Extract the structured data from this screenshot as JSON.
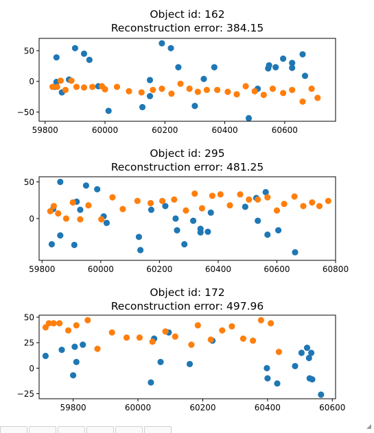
{
  "colors": {
    "series_a": "#1f77b4",
    "series_b": "#ff7f0e",
    "axis": "#000000"
  },
  "chart_data": [
    {
      "type": "scatter",
      "title": [
        "Object id: 162",
        "Reconstruction error: 384.15"
      ],
      "xlabel": "",
      "ylabel": "",
      "xlim": [
        59780,
        60770
      ],
      "ylim": [
        -65,
        70
      ],
      "xticks": [
        59800,
        60000,
        60200,
        60400,
        60600
      ],
      "yticks": [
        -50,
        0,
        50
      ],
      "grid": false,
      "series": [
        {
          "color": "#1f77b4",
          "points": [
            [
              59838,
              39
            ],
            [
              59838,
              -1
            ],
            [
              59833,
              -9
            ],
            [
              59856,
              -18
            ],
            [
              59880,
              3
            ],
            [
              59900,
              54
            ],
            [
              59930,
              45
            ],
            [
              59948,
              35
            ],
            [
              59978,
              -8
            ],
            [
              60012,
              -48
            ],
            [
              60125,
              -42
            ],
            [
              60150,
              2
            ],
            [
              60150,
              -24
            ],
            [
              60190,
              62
            ],
            [
              60220,
              54
            ],
            [
              60245,
              23
            ],
            [
              60300,
              -40
            ],
            [
              60330,
              4
            ],
            [
              60365,
              23
            ],
            [
              60480,
              -60
            ],
            [
              60510,
              -12
            ],
            [
              60545,
              21
            ],
            [
              60548,
              26
            ],
            [
              60570,
              23
            ],
            [
              60595,
              37
            ],
            [
              60625,
              22
            ],
            [
              60625,
              30
            ],
            [
              60660,
              44
            ],
            [
              60668,
              9
            ]
          ]
        },
        {
          "color": "#ff7f0e",
          "points": [
            [
              59825,
              -9
            ],
            [
              59840,
              -9
            ],
            [
              59852,
              1
            ],
            [
              59868,
              -14
            ],
            [
              59888,
              1
            ],
            [
              59905,
              -9
            ],
            [
              59930,
              -10
            ],
            [
              59958,
              -9
            ],
            [
              59990,
              -8
            ],
            [
              60000,
              -13
            ],
            [
              60040,
              -9
            ],
            [
              60080,
              -16
            ],
            [
              60122,
              -18
            ],
            [
              60160,
              -14
            ],
            [
              60190,
              -12
            ],
            [
              60222,
              -20
            ],
            [
              60252,
              -4
            ],
            [
              60282,
              -12
            ],
            [
              60310,
              -17
            ],
            [
              60340,
              -14
            ],
            [
              60375,
              -14
            ],
            [
              60410,
              -17
            ],
            [
              60440,
              -21
            ],
            [
              60470,
              -8
            ],
            [
              60500,
              -16
            ],
            [
              60530,
              -22
            ],
            [
              60560,
              -12
            ],
            [
              60595,
              -19
            ],
            [
              60625,
              -14
            ],
            [
              60660,
              -33
            ],
            [
              60690,
              -12
            ],
            [
              60710,
              -27
            ]
          ]
        }
      ]
    },
    {
      "type": "scatter",
      "title": [
        "Object id: 295",
        "Reconstruction error: 481.25"
      ],
      "xlabel": "",
      "ylabel": "",
      "xlim": [
        59790,
        60800
      ],
      "ylim": [
        -57,
        57
      ],
      "xticks": [
        59800,
        60000,
        60200,
        60400,
        60600,
        60800
      ],
      "yticks": [
        0,
        50
      ],
      "grid": false,
      "series": [
        {
          "color": "#1f77b4",
          "points": [
            [
              59833,
              -35
            ],
            [
              59838,
              13
            ],
            [
              59862,
              -23
            ],
            [
              59862,
              50
            ],
            [
              59910,
              -36
            ],
            [
              59918,
              23
            ],
            [
              59930,
              12
            ],
            [
              59950,
              45
            ],
            [
              59988,
              40
            ],
            [
              60010,
              3
            ],
            [
              60020,
              -6
            ],
            [
              60130,
              -25
            ],
            [
              60135,
              -43
            ],
            [
              60172,
              12
            ],
            [
              60220,
              17
            ],
            [
              60255,
              0
            ],
            [
              60260,
              -16
            ],
            [
              60285,
              -35
            ],
            [
              60315,
              -3
            ],
            [
              60340,
              -14
            ],
            [
              60340,
              -19
            ],
            [
              60365,
              -18
            ],
            [
              60375,
              8
            ],
            [
              60492,
              16
            ],
            [
              60530,
              28
            ],
            [
              60535,
              -3
            ],
            [
              60562,
              36
            ],
            [
              60568,
              -22
            ],
            [
              60605,
              -16
            ],
            [
              60662,
              -46
            ]
          ]
        },
        {
          "color": "#ff7f0e",
          "points": [
            [
              59828,
              10
            ],
            [
              59840,
              17
            ],
            [
              59855,
              7
            ],
            [
              59882,
              0
            ],
            [
              59905,
              22
            ],
            [
              59930,
              -1
            ],
            [
              59958,
              18
            ],
            [
              60002,
              -1
            ],
            [
              60040,
              29
            ],
            [
              60075,
              13
            ],
            [
              60125,
              24
            ],
            [
              60170,
              21
            ],
            [
              60210,
              24
            ],
            [
              60250,
              26
            ],
            [
              60290,
              11
            ],
            [
              60320,
              34
            ],
            [
              60345,
              14
            ],
            [
              60380,
              31
            ],
            [
              60408,
              33
            ],
            [
              60440,
              18
            ],
            [
              60475,
              33
            ],
            [
              60505,
              26
            ],
            [
              60535,
              26
            ],
            [
              60568,
              29
            ],
            [
              60600,
              11
            ],
            [
              60625,
              20
            ],
            [
              60660,
              30
            ],
            [
              60690,
              17
            ],
            [
              60720,
              22
            ],
            [
              60745,
              17
            ],
            [
              60775,
              24
            ]
          ]
        }
      ]
    },
    {
      "type": "scatter",
      "title": [
        "Object id: 172",
        "Reconstruction error: 497.96"
      ],
      "xlabel": "",
      "ylabel": "",
      "xlim": [
        59695,
        60610
      ],
      "ylim": [
        -30,
        52
      ],
      "xticks": [
        59800,
        60000,
        60200,
        60400,
        60600
      ],
      "yticks": [
        -25,
        0,
        25,
        50
      ],
      "grid": false,
      "series": [
        {
          "color": "#1f77b4",
          "points": [
            [
              59715,
              12
            ],
            [
              59765,
              18
            ],
            [
              59800,
              -7
            ],
            [
              59805,
              21
            ],
            [
              59810,
              6
            ],
            [
              59830,
              23
            ],
            [
              60040,
              -14
            ],
            [
              60050,
              29
            ],
            [
              60070,
              6
            ],
            [
              60095,
              35
            ],
            [
              60160,
              4
            ],
            [
              60230,
              27
            ],
            [
              60398,
              0
            ],
            [
              60400,
              -10
            ],
            [
              60430,
              -15
            ],
            [
              60485,
              2
            ],
            [
              60505,
              15
            ],
            [
              60522,
              20
            ],
            [
              60528,
              10
            ],
            [
              60530,
              -10
            ],
            [
              60535,
              15
            ],
            [
              60538,
              -11
            ],
            [
              60565,
              -26
            ]
          ]
        },
        {
          "color": "#ff7f0e",
          "points": [
            [
              59715,
              40
            ],
            [
              59725,
              44
            ],
            [
              59740,
              44
            ],
            [
              59758,
              44
            ],
            [
              59785,
              37
            ],
            [
              59810,
              42
            ],
            [
              59845,
              47
            ],
            [
              59875,
              19
            ],
            [
              59920,
              35
            ],
            [
              59965,
              30
            ],
            [
              60005,
              30
            ],
            [
              60045,
              26
            ],
            [
              60085,
              36
            ],
            [
              60115,
              31
            ],
            [
              60165,
              23
            ],
            [
              60185,
              42
            ],
            [
              60225,
              28
            ],
            [
              60260,
              37
            ],
            [
              60290,
              41
            ],
            [
              60325,
              29
            ],
            [
              60355,
              27
            ],
            [
              60380,
              47
            ],
            [
              60410,
              44
            ],
            [
              60435,
              16
            ]
          ]
        }
      ]
    }
  ]
}
